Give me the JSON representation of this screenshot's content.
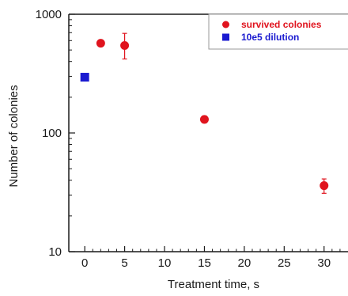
{
  "chart_data": {
    "type": "scatter",
    "xlabel": "Treatment time, s",
    "ylabel": "Number of colonies",
    "xlim": [
      -2,
      33
    ],
    "ylim": [
      10,
      1000
    ],
    "yscale": "log",
    "x_ticks": [
      0,
      5,
      10,
      15,
      20,
      25,
      30
    ],
    "x_tick_labels": [
      "0",
      "5",
      "10",
      "15",
      "20",
      "25",
      "30"
    ],
    "y_ticks": [
      10,
      100,
      1000
    ],
    "y_tick_labels": [
      "10",
      "100",
      "1000"
    ],
    "grid": false,
    "legend_position": "top-right",
    "series": [
      {
        "name": "survived colonies",
        "color": "#e0141e",
        "marker": "circle",
        "points": [
          {
            "x": 2,
            "y": 570,
            "err_low": 540,
            "err_high": 600
          },
          {
            "x": 5,
            "y": 545,
            "err_low": 420,
            "err_high": 690
          },
          {
            "x": 15,
            "y": 130,
            "err_low": 122,
            "err_high": 139
          },
          {
            "x": 30,
            "y": 36,
            "err_low": 31,
            "err_high": 41
          }
        ]
      },
      {
        "name": "10e5 dilution",
        "color": "#1a1ad0",
        "marker": "square",
        "points": [
          {
            "x": 0,
            "y": 295
          }
        ]
      }
    ]
  }
}
